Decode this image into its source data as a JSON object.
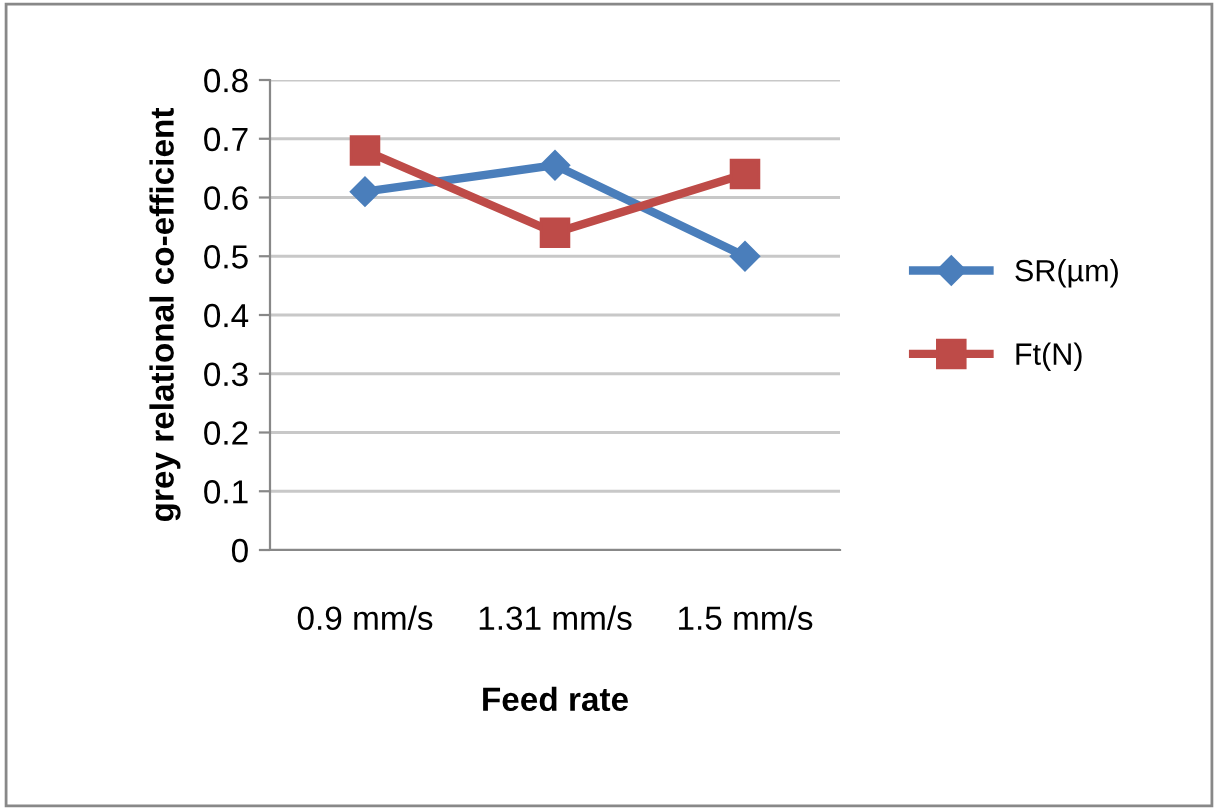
{
  "chart_data": {
    "type": "line",
    "xlabel": "Feed rate",
    "ylabel": "grey relational co-efficient",
    "categories": [
      "0.9 mm/s",
      "1.31 mm/s",
      "1.5 mm/s"
    ],
    "series": [
      {
        "name": "SR(µm)",
        "color": "#4a7ebb",
        "marker": "diamond",
        "values": [
          0.61,
          0.655,
          0.5
        ]
      },
      {
        "name": "Ft(N)",
        "color": "#be4b48",
        "marker": "square",
        "values": [
          0.68,
          0.54,
          0.64
        ]
      }
    ],
    "ylim": [
      0,
      0.8
    ],
    "yticks": [
      {
        "value": 0,
        "label": "0"
      },
      0.1,
      0.2,
      0.3,
      0.4,
      0.5,
      0.6,
      0.7,
      0.8
    ],
    "grid": "y",
    "legend": "right"
  }
}
